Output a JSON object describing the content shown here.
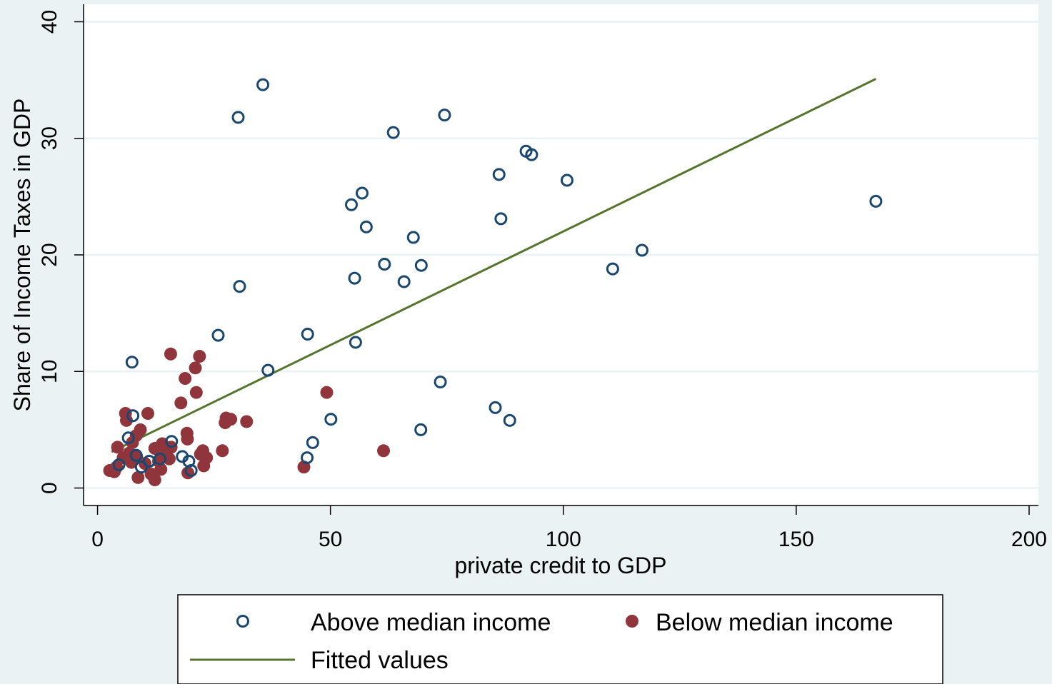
{
  "chart_data": {
    "type": "scatter",
    "title": "",
    "xlabel": "private credit to GDP",
    "ylabel": "Share of Income Taxes in GDP",
    "xlim": [
      -3,
      202
    ],
    "ylim": [
      -1.5,
      41.5
    ],
    "xticks": [
      0,
      50,
      100,
      150,
      200
    ],
    "yticks": [
      0,
      10,
      20,
      30,
      40
    ],
    "grid": "horizontal",
    "legend_position": "bottom",
    "colors": {
      "background": "#eaf2f3",
      "plot_area": "#ffffff",
      "grid": "#eaf2f3",
      "above": "#1a476f",
      "below": "#90353b",
      "fitted": "#55752f"
    },
    "series": [
      {
        "name": "Above median income",
        "marker": "hollow-circle",
        "points": [
          [
            35.5,
            34.6
          ],
          [
            30.2,
            31.8
          ],
          [
            63.5,
            30.5
          ],
          [
            74.5,
            32.0
          ],
          [
            92.0,
            28.9
          ],
          [
            93.2,
            28.6
          ],
          [
            86.2,
            26.9
          ],
          [
            100.8,
            26.4
          ],
          [
            167.1,
            24.6
          ],
          [
            56.8,
            25.3
          ],
          [
            54.5,
            24.3
          ],
          [
            57.7,
            22.4
          ],
          [
            86.6,
            23.1
          ],
          [
            67.8,
            21.5
          ],
          [
            116.9,
            20.4
          ],
          [
            110.6,
            18.8
          ],
          [
            61.6,
            19.2
          ],
          [
            69.5,
            19.1
          ],
          [
            55.2,
            18.0
          ],
          [
            65.8,
            17.7
          ],
          [
            30.5,
            17.3
          ],
          [
            25.9,
            13.1
          ],
          [
            45.1,
            13.2
          ],
          [
            55.4,
            12.5
          ],
          [
            36.6,
            10.1
          ],
          [
            7.4,
            10.8
          ],
          [
            73.6,
            9.1
          ],
          [
            85.4,
            6.9
          ],
          [
            88.5,
            5.8
          ],
          [
            50.1,
            5.9
          ],
          [
            69.4,
            5.0
          ],
          [
            7.6,
            6.2
          ],
          [
            6.6,
            4.3
          ],
          [
            46.2,
            3.9
          ],
          [
            45.0,
            2.6
          ],
          [
            15.9,
            4.0
          ],
          [
            18.2,
            2.7
          ],
          [
            11.1,
            2.3
          ],
          [
            19.6,
            2.3
          ],
          [
            20.1,
            1.5
          ],
          [
            8.3,
            2.8
          ],
          [
            9.4,
            1.8
          ],
          [
            4.6,
            2.0
          ],
          [
            13.4,
            2.5
          ]
        ]
      },
      {
        "name": "Below median income",
        "marker": "filled-circle",
        "points": [
          [
            15.7,
            11.5
          ],
          [
            21.9,
            11.3
          ],
          [
            21.0,
            10.3
          ],
          [
            18.8,
            9.4
          ],
          [
            21.2,
            8.2
          ],
          [
            49.2,
            8.2
          ],
          [
            17.9,
            7.3
          ],
          [
            6.0,
            6.4
          ],
          [
            10.8,
            6.4
          ],
          [
            27.6,
            6.0
          ],
          [
            28.6,
            5.9
          ],
          [
            32.0,
            5.7
          ],
          [
            6.2,
            5.8
          ],
          [
            27.4,
            5.6
          ],
          [
            9.2,
            5.0
          ],
          [
            19.2,
            4.7
          ],
          [
            8.3,
            4.5
          ],
          [
            19.3,
            4.2
          ],
          [
            7.5,
            3.9
          ],
          [
            13.9,
            3.8
          ],
          [
            15.8,
            3.5
          ],
          [
            4.3,
            3.5
          ],
          [
            12.3,
            3.4
          ],
          [
            26.8,
            3.2
          ],
          [
            61.4,
            3.2
          ],
          [
            22.6,
            3.2
          ],
          [
            14.4,
            3.0
          ],
          [
            6.8,
            3.0
          ],
          [
            22.1,
            2.9
          ],
          [
            8.4,
            2.7
          ],
          [
            5.5,
            2.6
          ],
          [
            23.4,
            2.6
          ],
          [
            15.4,
            2.5
          ],
          [
            13.1,
            2.3
          ],
          [
            7.3,
            2.2
          ],
          [
            10.2,
            2.1
          ],
          [
            22.8,
            1.9
          ],
          [
            44.3,
            1.8
          ],
          [
            4.1,
            1.8
          ],
          [
            13.6,
            1.6
          ],
          [
            2.6,
            1.5
          ],
          [
            3.6,
            1.4
          ],
          [
            19.4,
            1.3
          ],
          [
            11.5,
            1.2
          ],
          [
            8.7,
            0.9
          ],
          [
            12.3,
            0.7
          ]
        ]
      },
      {
        "name": "Fitted values",
        "type": "line",
        "points": [
          [
            3.0,
            3.1
          ],
          [
            167.1,
            35.1
          ]
        ]
      }
    ]
  }
}
